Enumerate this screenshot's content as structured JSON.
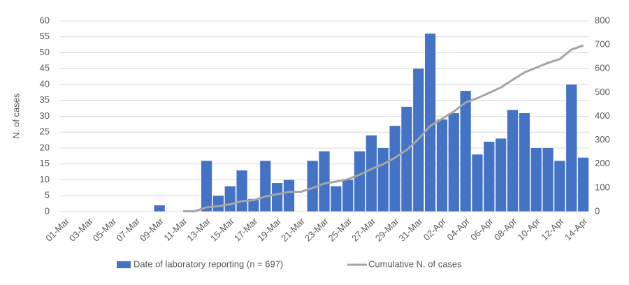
{
  "chart_data": {
    "type": "bar",
    "categories": [
      "01-Mar",
      null,
      "03-Mar",
      null,
      "05-Mar",
      null,
      "07-Mar",
      null,
      "09-Mar",
      null,
      "11-Mar",
      null,
      "13-Mar",
      null,
      "15-Mar",
      null,
      "17-Mar",
      null,
      "19-Mar",
      null,
      "21-Mar",
      null,
      "23-Mar",
      null,
      "25-Mar",
      null,
      "27-Mar",
      null,
      "29-Mar",
      null,
      "31-Mar",
      null,
      "02-Apr",
      null,
      "04-Apr",
      null,
      "06-Apr",
      null,
      "08-Apr",
      null,
      "10-Apr",
      null,
      "12-Apr",
      null,
      "14-Apr"
    ],
    "series": [
      {
        "name": "Date of laboratory reporting (n = 697)",
        "color": "#4472c4",
        "type": "bar",
        "values": [
          0,
          0,
          0,
          0,
          0,
          0,
          0,
          0,
          2,
          0,
          0,
          0,
          16,
          5,
          8,
          13,
          4,
          16,
          9,
          10,
          0,
          16,
          19,
          8,
          10,
          19,
          24,
          20,
          27,
          33,
          45,
          56,
          29,
          31,
          38,
          18,
          22,
          23,
          32,
          31,
          20,
          20,
          16,
          40,
          17
        ]
      },
      {
        "name": "Cumulative N. of cases",
        "color": "#a5a5a5",
        "type": "line",
        "axis": "y2",
        "values": [
          null,
          null,
          null,
          null,
          null,
          null,
          null,
          null,
          null,
          null,
          2,
          2,
          18,
          23,
          31,
          44,
          48,
          64,
          73,
          83,
          83,
          99,
          118,
          126,
          136,
          155,
          179,
          199,
          226,
          259,
          304,
          360,
          389,
          420,
          458,
          476,
          498,
          521,
          553,
          584,
          604,
          624,
          640,
          680,
          697
        ]
      }
    ],
    "y_label": "N. of cases",
    "ylim": [
      0,
      60
    ],
    "yticks": [
      0,
      5,
      10,
      15,
      20,
      25,
      30,
      35,
      40,
      45,
      50,
      55,
      60
    ],
    "y2lim": [
      0,
      800
    ],
    "y2ticks": [
      0,
      100,
      200,
      300,
      400,
      500,
      600,
      700,
      800
    ],
    "grid": true,
    "legend": "bottom"
  }
}
